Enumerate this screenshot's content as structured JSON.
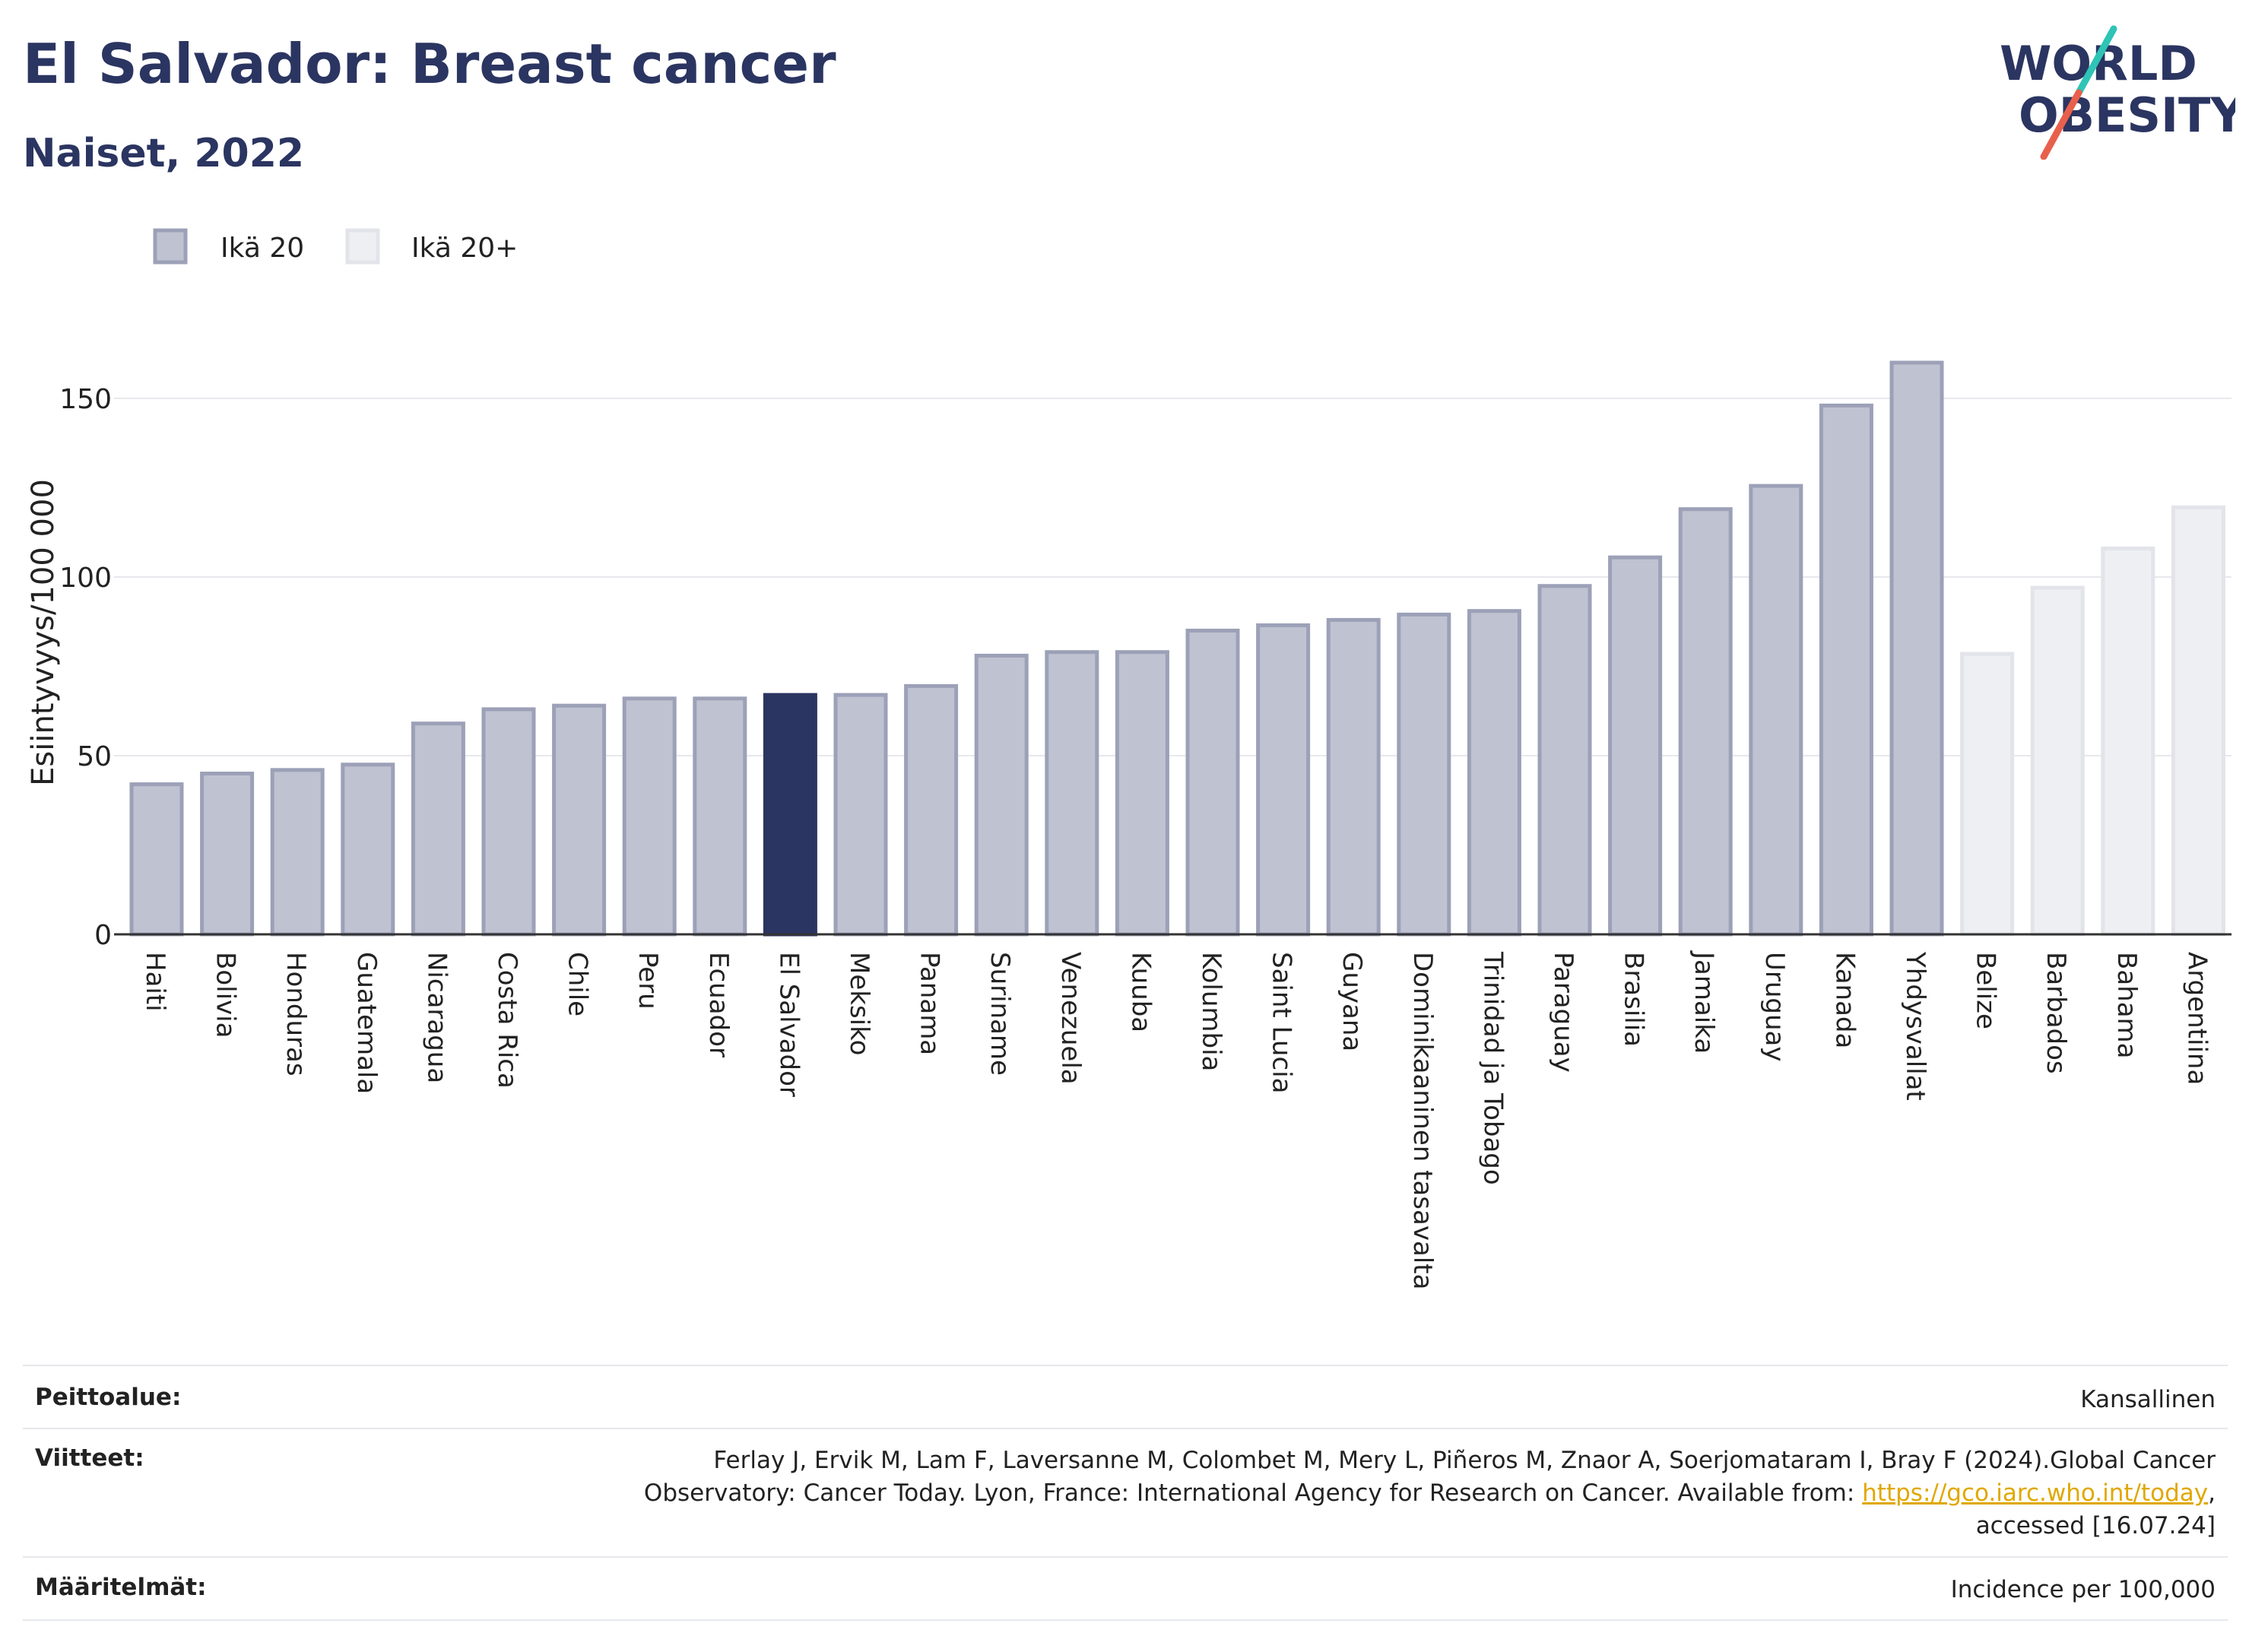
{
  "header": {
    "title": "El Salvador: Breast cancer",
    "subtitle": "Naiset, 2022"
  },
  "logo": {
    "line1": "WORLD",
    "line2": "OBESITY",
    "colors": {
      "text": "#2b3561",
      "slash_teal": "#2ec4b6",
      "slash_red": "#e8604c"
    }
  },
  "colors": {
    "series_age20": "#bfc2d0",
    "series_age20_stroke": "#9ca1b8",
    "series_age20plus": "#eeeff3",
    "series_age20plus_stroke": "#e2e4ea",
    "highlight": "#2b3561",
    "text": "#222222",
    "grid": "#e8e8ec"
  },
  "chart_data": {
    "type": "bar",
    "ylabel": "Esiintyvyys/100 000",
    "ylim": [
      0,
      175
    ],
    "yticks": [
      0,
      50,
      100,
      150
    ],
    "grid": true,
    "legend": {
      "position": "top-left",
      "entries": [
        "Ikä 20",
        "Ikä 20+"
      ]
    },
    "highlight_category": "El Salvador",
    "categories": [
      "Haiti",
      "Bolivia",
      "Honduras",
      "Guatemala",
      "Nicaragua",
      "Costa Rica",
      "Chile",
      "Peru",
      "Ecuador",
      "El Salvador",
      "Meksiko",
      "Panama",
      "Suriname",
      "Venezuela",
      "Kuuba",
      "Kolumbia",
      "Saint Lucia",
      "Guyana",
      "Dominikaaninen tasavalta",
      "Trinidad ja Tobago",
      "Paraguay",
      "Brasilia",
      "Jamaika",
      "Uruguay",
      "Kanada",
      "Yhdysvallat",
      "Belize",
      "Barbados",
      "Bahama",
      "Argentiina"
    ],
    "values": [
      42,
      45,
      46,
      47.5,
      59,
      63,
      64,
      66,
      66,
      67,
      67,
      69.5,
      78,
      79,
      79,
      85,
      86.5,
      88,
      89.5,
      90.5,
      97.5,
      105.5,
      119,
      125.5,
      148,
      160,
      78.5,
      97,
      108,
      119.5
    ],
    "series_membership": [
      "Ikä 20",
      "Ikä 20",
      "Ikä 20",
      "Ikä 20",
      "Ikä 20",
      "Ikä 20",
      "Ikä 20",
      "Ikä 20",
      "Ikä 20",
      "Ikä 20",
      "Ikä 20",
      "Ikä 20",
      "Ikä 20",
      "Ikä 20",
      "Ikä 20",
      "Ikä 20",
      "Ikä 20",
      "Ikä 20",
      "Ikä 20",
      "Ikä 20",
      "Ikä 20",
      "Ikä 20",
      "Ikä 20",
      "Ikä 20",
      "Ikä 20",
      "Ikä 20",
      "Ikä 20+",
      "Ikä 20+",
      "Ikä 20+",
      "Ikä 20+"
    ]
  },
  "footer": {
    "coverage_label": "Peittoalue:",
    "coverage_value": "Kansallinen",
    "references_label": "Viitteet:",
    "references_line1": "Ferlay J, Ervik M, Lam F, Laversanne M, Colombet M, Mery L, Piñeros M, Znaor A, Soerjomataram I, Bray F (2024).Global Cancer",
    "references_line2_prefix": "Observatory: Cancer Today. Lyon, France: International Agency for Research on Cancer. Available from: ",
    "references_link": "https://gco.iarc.who.int/today",
    "references_line2_suffix": ",",
    "references_line3": "accessed [16.07.24]",
    "definitions_label": "Määritelmät:",
    "definitions_value": "Incidence per 100,000"
  }
}
